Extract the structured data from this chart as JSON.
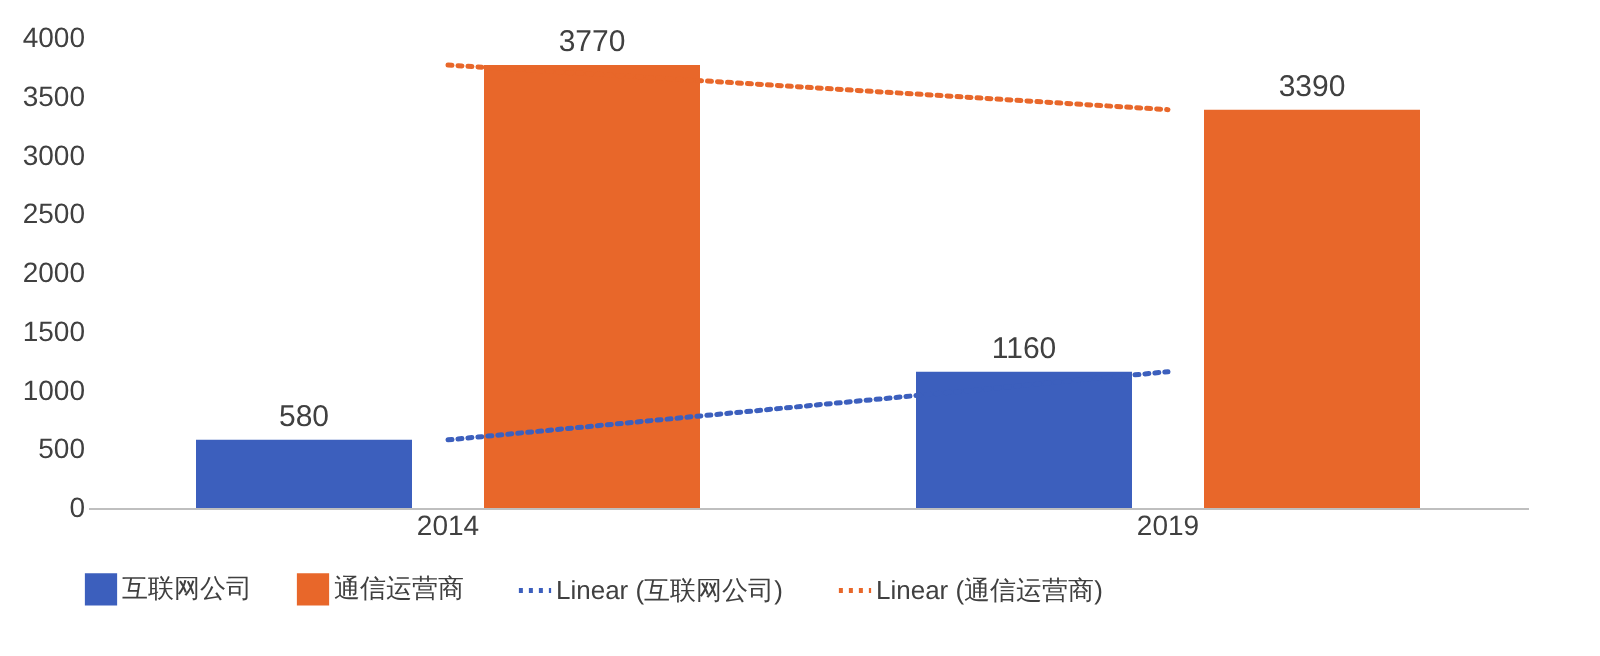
{
  "chart_data": {
    "type": "bar",
    "categories": [
      "2014",
      "2019"
    ],
    "series": [
      {
        "name": "互联网公司",
        "color": "#3c5fbd",
        "values": [
          580,
          1160
        ],
        "value_labels": [
          "580",
          "1160"
        ]
      },
      {
        "name": "通信运营商",
        "color": "#e8672a",
        "values": [
          3770,
          3390
        ],
        "value_labels": [
          "3770",
          "3390"
        ]
      },
      {
        "name": "Linear (互联网公司)",
        "type": "line",
        "color": "#3c5fbd",
        "line_style": "dotted",
        "values": [
          580,
          1160
        ]
      },
      {
        "name": "Linear (通信运营商)",
        "type": "line",
        "color": "#e8672a",
        "line_style": "dotted",
        "values": [
          3770,
          3390
        ]
      }
    ],
    "ylim": [
      0,
      4000
    ],
    "yticks": [
      0,
      500,
      1000,
      1500,
      2000,
      2500,
      3000,
      3500,
      4000
    ],
    "grid": false,
    "legend": "bottom"
  }
}
